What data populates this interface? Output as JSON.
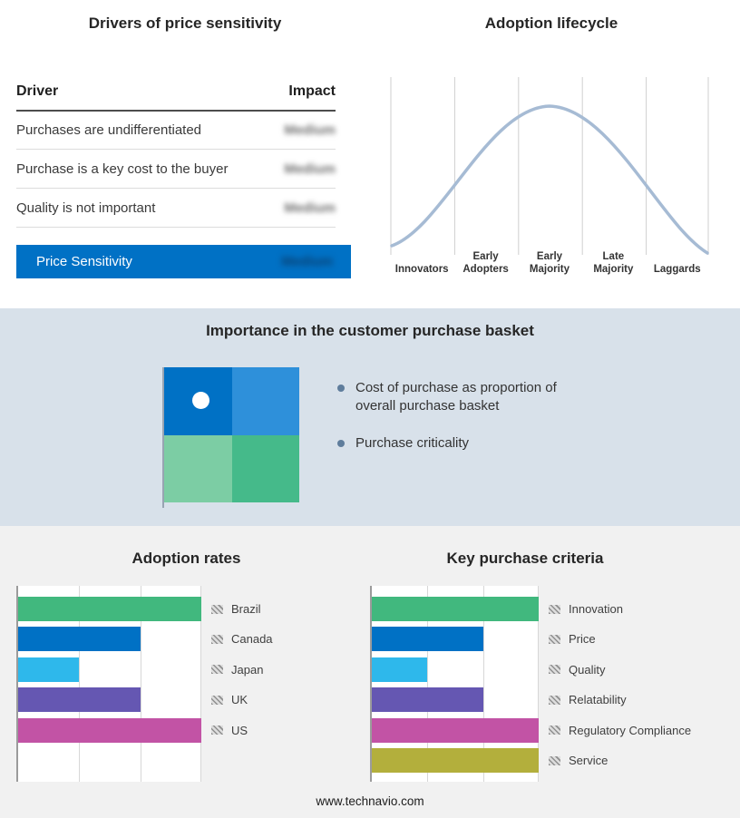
{
  "meta": {
    "footer": "www.technavio.com"
  },
  "colors": {
    "accent_blue": "#0071c5",
    "band_bg": "#d8e1ea",
    "curve": "#a6bbd4"
  },
  "drivers_table": {
    "title": "Drivers of price sensitivity",
    "columns": {
      "driver": "Driver",
      "impact": "Impact"
    },
    "rows": [
      {
        "driver": "Purchases are undifferentiated",
        "impact": "Medium"
      },
      {
        "driver": "Purchase is a key cost to the buyer",
        "impact": "Medium"
      },
      {
        "driver": "Quality is not important",
        "impact": "Medium"
      }
    ],
    "summary": {
      "label": "Price Sensitivity",
      "impact": "Medium"
    },
    "impact_values_blurred": true
  },
  "adoption_lifecycle": {
    "title": "Adoption lifecycle",
    "stages": [
      "Innovators",
      "Early Adopters",
      "Early Majority",
      "Late Majority",
      "Laggards"
    ]
  },
  "purchase_basket": {
    "title": "Importance in the customer purchase basket",
    "bullets": [
      "Cost of purchase as proportion of overall purchase basket",
      "Purchase criticality"
    ],
    "quadrant_colors": [
      "#0071c5",
      "#2e90da",
      "#7ccda4",
      "#45ba8a"
    ]
  },
  "chart_data": [
    {
      "type": "bar",
      "orientation": "horizontal",
      "title": "Adoption rates",
      "categories": [
        "Brazil",
        "Canada",
        "Japan",
        "UK",
        "US"
      ],
      "values": [
        3,
        2,
        1,
        2,
        3
      ],
      "xlim": [
        0,
        3
      ],
      "value_unit": "gridline units (no numeric axis labels shown)",
      "grid": true,
      "legend_position": "right",
      "colors": [
        "#41b87e",
        "#0071c5",
        "#2eb8eb",
        "#6557b2",
        "#c253a5"
      ]
    },
    {
      "type": "bar",
      "orientation": "horizontal",
      "title": "Key purchase criteria",
      "categories": [
        "Innovation",
        "Price",
        "Quality",
        "Relatability",
        "Regulatory Compliance",
        "Service"
      ],
      "values": [
        3,
        2,
        1,
        2,
        3,
        3
      ],
      "xlim": [
        0,
        3
      ],
      "value_unit": "gridline units (no numeric axis labels shown)",
      "grid": true,
      "legend_position": "right",
      "colors": [
        "#41b87e",
        "#0071c5",
        "#2eb8eb",
        "#6557b2",
        "#c253a5",
        "#b3af3c"
      ]
    },
    {
      "type": "line",
      "title": "Adoption lifecycle",
      "categories": [
        "Innovators",
        "Early Adopters",
        "Early Majority",
        "Late Majority",
        "Laggards"
      ],
      "description": "Stylized bell curve across five adoption stages; no numeric axes shown"
    }
  ]
}
